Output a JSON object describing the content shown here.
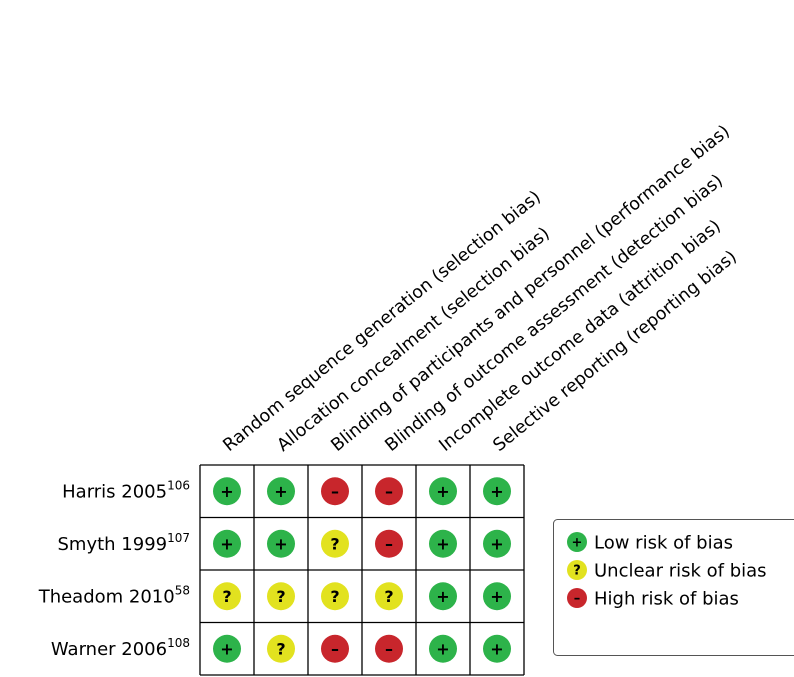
{
  "chart_data": {
    "type": "table",
    "columns": [
      "Random sequence generation (selection bias)",
      "Allocation concealment (selection bias)",
      "Blinding of participants and personnel (performance bias)",
      "Blinding of outcome assessment (detection bias)",
      "Incomplete outcome data (attrition bias)",
      "Selective reporting (reporting bias)"
    ],
    "rows": [
      {
        "study": "Harris 2005",
        "ref": "106",
        "values": [
          "low",
          "low",
          "high",
          "high",
          "low",
          "low"
        ]
      },
      {
        "study": "Smyth 1999",
        "ref": "107",
        "values": [
          "low",
          "low",
          "unclear",
          "high",
          "low",
          "low"
        ]
      },
      {
        "study": "Theadom 2010",
        "ref": "58",
        "values": [
          "unclear",
          "unclear",
          "unclear",
          "unclear",
          "low",
          "low"
        ]
      },
      {
        "study": "Warner 2006",
        "ref": "108",
        "values": [
          "low",
          "unclear",
          "high",
          "high",
          "low",
          "low"
        ]
      }
    ],
    "legend": [
      {
        "key": "low",
        "label": "Low risk of bias"
      },
      {
        "key": "unclear",
        "label": "Unclear risk of bias"
      },
      {
        "key": "high",
        "label": "High risk of bias"
      }
    ]
  },
  "symbols": {
    "low": "+",
    "unclear": "?",
    "high": "–"
  },
  "colors": {
    "low": "#2db34a",
    "unclear": "#e2e21f",
    "high": "#c8262c",
    "grid": "#000000"
  },
  "legend_placement": "right"
}
